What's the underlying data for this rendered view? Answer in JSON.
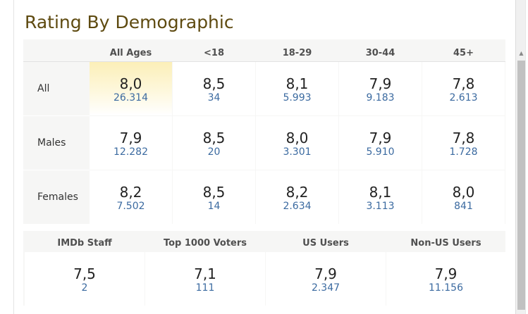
{
  "title": "Rating By Demographic",
  "columns": [
    "All Ages",
    "<18",
    "18-29",
    "30-44",
    "45+"
  ],
  "rows": [
    {
      "label": "All",
      "cells": [
        {
          "rating": "8,0",
          "votes": "26.314"
        },
        {
          "rating": "8,5",
          "votes": "34"
        },
        {
          "rating": "8,1",
          "votes": "5.993"
        },
        {
          "rating": "7,9",
          "votes": "9.183"
        },
        {
          "rating": "7,8",
          "votes": "2.613"
        }
      ]
    },
    {
      "label": "Males",
      "cells": [
        {
          "rating": "7,9",
          "votes": "12.282"
        },
        {
          "rating": "8,5",
          "votes": "20"
        },
        {
          "rating": "8,0",
          "votes": "3.301"
        },
        {
          "rating": "7,9",
          "votes": "5.910"
        },
        {
          "rating": "7,8",
          "votes": "1.728"
        }
      ]
    },
    {
      "label": "Females",
      "cells": [
        {
          "rating": "8,2",
          "votes": "7.502"
        },
        {
          "rating": "8,5",
          "votes": "14"
        },
        {
          "rating": "8,2",
          "votes": "2.634"
        },
        {
          "rating": "8,1",
          "votes": "3.113"
        },
        {
          "rating": "8,0",
          "votes": "841"
        }
      ]
    }
  ],
  "groups_columns": [
    "IMDb Staff",
    "Top 1000 Voters",
    "US Users",
    "Non-US Users"
  ],
  "groups": [
    {
      "rating": "7,5",
      "votes": "2"
    },
    {
      "rating": "7,1",
      "votes": "111"
    },
    {
      "rating": "7,9",
      "votes": "2.347"
    },
    {
      "rating": "7,9",
      "votes": "11.156"
    }
  ],
  "colors": {
    "title": "#5e4a10",
    "votes_link": "#3b6aa0",
    "highlight": "#fcefb8"
  }
}
